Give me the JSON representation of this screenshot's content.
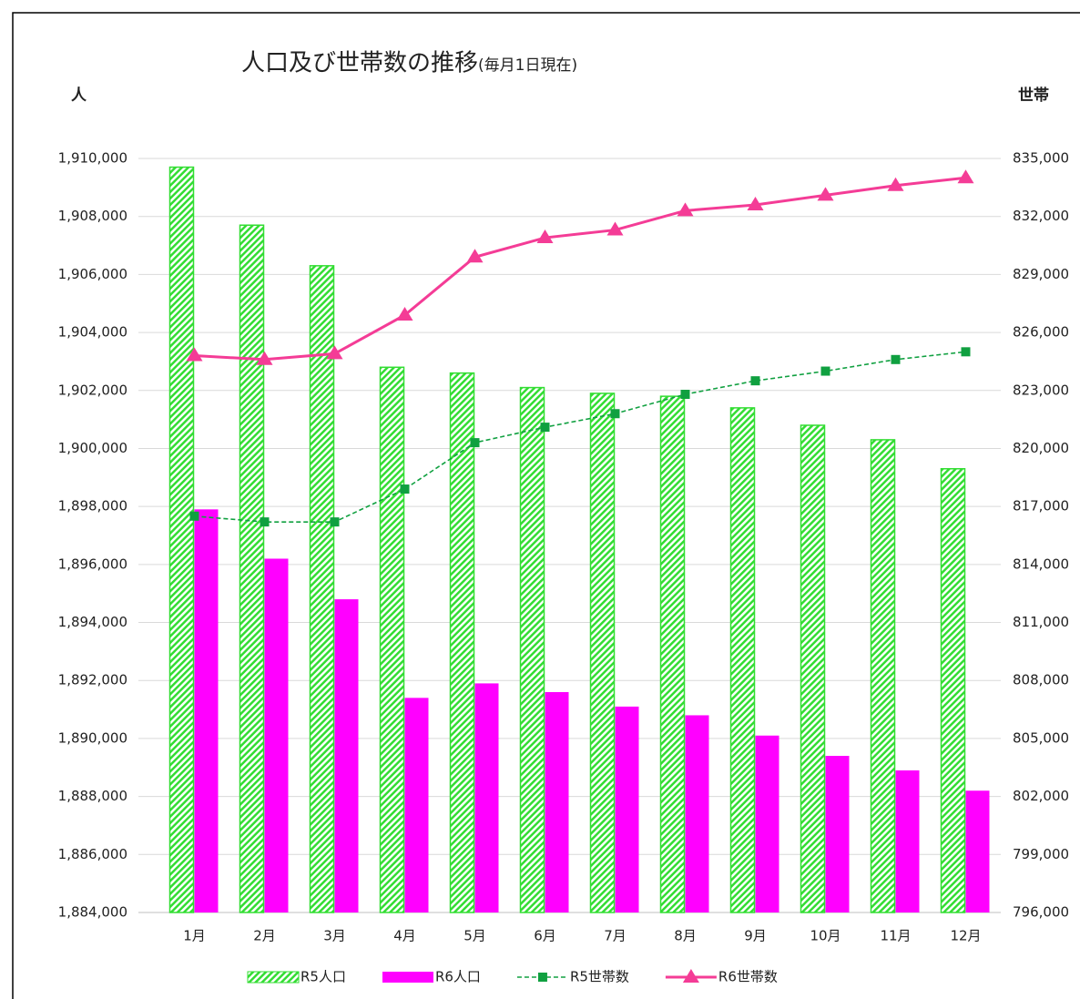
{
  "chart_data": {
    "type": "bar",
    "title": "人口及び世帯数の推移",
    "subtitle": "(毎月1日現在)",
    "y_label": "人",
    "y2_label": "世帯",
    "categories": [
      "1月",
      "2月",
      "3月",
      "4月",
      "5月",
      "6月",
      "7月",
      "8月",
      "9月",
      "10月",
      "11月",
      "12月"
    ],
    "series": [
      {
        "name": "R5人口",
        "type": "bar",
        "color": "#33dd33",
        "pattern": "hatch",
        "values": [
          1909700,
          1907700,
          1906300,
          1902800,
          1902600,
          1902100,
          1901900,
          1901800,
          1901400,
          1900800,
          1900300,
          1899300
        ]
      },
      {
        "name": "R6人口",
        "type": "bar",
        "color": "#ff00ff",
        "values": [
          1897900,
          1896200,
          1894800,
          1891400,
          1891900,
          1891600,
          1891100,
          1890800,
          1890100,
          1889400,
          1888900,
          1888200
        ]
      },
      {
        "name": "R5世帯数",
        "type": "line",
        "axis": "y2",
        "color": "#10a040",
        "line_style": "dashed",
        "marker": "square",
        "values": [
          816500,
          816200,
          816200,
          817900,
          820300,
          821100,
          821800,
          822800,
          823500,
          824000,
          824600,
          825000
        ]
      },
      {
        "name": "R6世帯数",
        "type": "line",
        "axis": "y2",
        "color": "#f43c96",
        "line_style": "solid",
        "marker": "triangle",
        "values": [
          824800,
          824600,
          824900,
          826900,
          829900,
          830900,
          831300,
          832300,
          832600,
          833100,
          833600,
          834000
        ]
      }
    ],
    "ylim": [
      1884000,
      1910000
    ],
    "yticks": [
      {
        "value": 1884000,
        "label": "1,884,000"
      },
      {
        "value": 1886000,
        "label": "1,886,000"
      },
      {
        "value": 1888000,
        "label": "1,888,000"
      },
      {
        "value": 1890000,
        "label": "1,890,000"
      },
      {
        "value": 1892000,
        "label": "1,892,000"
      },
      {
        "value": 1894000,
        "label": "1,894,000"
      },
      {
        "value": 1896000,
        "label": "1,896,000"
      },
      {
        "value": 1898000,
        "label": "1,898,000"
      },
      {
        "value": 1900000,
        "label": "1,900,000"
      },
      {
        "value": 1902000,
        "label": "1,902,000"
      },
      {
        "value": 1904000,
        "label": "1,904,000"
      },
      {
        "value": 1906000,
        "label": "1,906,000"
      },
      {
        "value": 1908000,
        "label": "1,908,000"
      },
      {
        "value": 1910000,
        "label": "1,910,000"
      }
    ],
    "y2lim": [
      796000,
      835000
    ],
    "y2ticks": [
      {
        "value": 796000,
        "label": "796,000"
      },
      {
        "value": 799000,
        "label": "799,000"
      },
      {
        "value": 802000,
        "label": "802,000"
      },
      {
        "value": 805000,
        "label": "805,000"
      },
      {
        "value": 808000,
        "label": "808,000"
      },
      {
        "value": 811000,
        "label": "811,000"
      },
      {
        "value": 814000,
        "label": "814,000"
      },
      {
        "value": 817000,
        "label": "817,000"
      },
      {
        "value": 820000,
        "label": "820,000"
      },
      {
        "value": 823000,
        "label": "823,000"
      },
      {
        "value": 826000,
        "label": "826,000"
      },
      {
        "value": 829000,
        "label": "829,000"
      },
      {
        "value": 832000,
        "label": "832,000"
      },
      {
        "value": 835000,
        "label": "835,000"
      }
    ],
    "grid": true,
    "legend": "bottom"
  }
}
